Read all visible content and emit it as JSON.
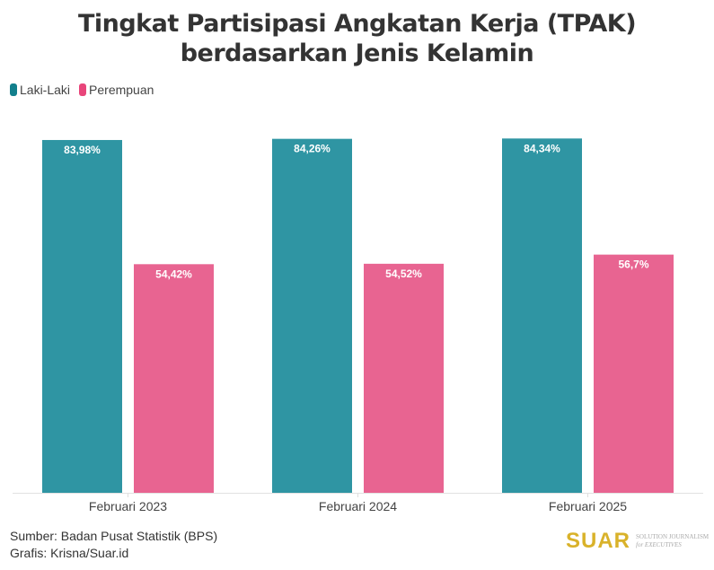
{
  "title": "Tingkat Partisipasi Angkatan Kerja (TPAK) berdasarkan Jenis Kelamin",
  "footer": {
    "source": "Sumber: Badan Pusat Statistik (BPS)",
    "credit": "Grafis: Krisna/Suar.id"
  },
  "logo": {
    "text": "SUAR",
    "tagline_1": "SOLUTION JOURNALISM",
    "tagline_2": "for EXECUTIVES"
  },
  "chart_data": {
    "type": "bar",
    "title": "Tingkat Partisipasi Angkatan Kerja (TPAK) berdasarkan Jenis Kelamin",
    "categories": [
      "Februari 2023",
      "Februari 2024",
      "Februari 2025"
    ],
    "series": [
      {
        "name": "Laki-Laki",
        "values": [
          83.98,
          84.26,
          84.34
        ],
        "labels": [
          "83,98%",
          "84,26%",
          "84,34%"
        ],
        "color": "#2f95a3",
        "legend_color": "#127f8c"
      },
      {
        "name": "Perempuan",
        "values": [
          54.42,
          54.52,
          56.7
        ],
        "labels": [
          "54,42%",
          "54,52%",
          "56,7%"
        ],
        "color": "#e86491",
        "legend_color": "#e8457a"
      }
    ],
    "ylim": [
      0,
      100
    ],
    "grid": false,
    "legend_position": "top-left",
    "xlabel": "",
    "ylabel": ""
  }
}
